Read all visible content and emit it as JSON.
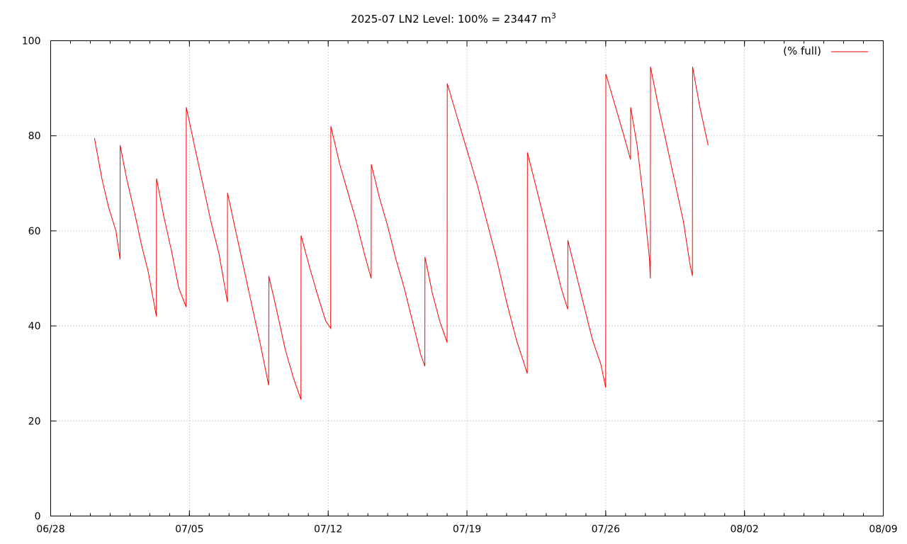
{
  "chart_data": {
    "type": "line",
    "title": "2025-07 LN2 Level: 100% = 23447 m",
    "title_superscript": "3",
    "xlabel": "",
    "ylabel": "",
    "x_ticks": [
      "06/28",
      "07/05",
      "07/12",
      "07/19",
      "07/26",
      "08/02",
      "08/09"
    ],
    "y_ticks": [
      "0",
      "20",
      "40",
      "60",
      "80",
      "100"
    ],
    "xlim": [
      "06/28",
      "08/09"
    ],
    "ylim": [
      0,
      100
    ],
    "grid": true,
    "legend_position": "top-right",
    "series": [
      {
        "name": "(% full)",
        "color": "#ff0000",
        "points": [
          [
            "06/30 05:00",
            79.5
          ],
          [
            "06/30 14:00",
            71.0
          ],
          [
            "06/30 22:00",
            65.0
          ],
          [
            "07/01 07:00",
            60.0
          ],
          [
            "07/01 12:00",
            54.0
          ],
          [
            "07/01 12:10",
            78.0
          ],
          [
            "07/01 20:00",
            71.0
          ],
          [
            "07/02 06:00",
            63.5
          ],
          [
            "07/02 14:00",
            57.0
          ],
          [
            "07/02 22:00",
            51.5
          ],
          [
            "07/03 08:00",
            42.0
          ],
          [
            "07/03 08:10",
            71.0
          ],
          [
            "07/03 17:00",
            63.0
          ],
          [
            "07/04 02:00",
            56.0
          ],
          [
            "07/04 11:00",
            48.0
          ],
          [
            "07/04 20:00",
            44.0
          ],
          [
            "07/04 20:10",
            86.0
          ],
          [
            "07/05 06:00",
            78.0
          ],
          [
            "07/05 16:00",
            70.0
          ],
          [
            "07/06 02:00",
            62.0
          ],
          [
            "07/06 12:00",
            55.0
          ],
          [
            "07/06 22:00",
            45.0
          ],
          [
            "07/06 22:10",
            68.0
          ],
          [
            "07/07 08:00",
            60.0
          ],
          [
            "07/07 18:00",
            52.0
          ],
          [
            "07/08 04:00",
            44.0
          ],
          [
            "07/08 14:00",
            36.0
          ],
          [
            "07/09 00:00",
            27.5
          ],
          [
            "07/09 00:10",
            50.5
          ],
          [
            "07/09 10:00",
            43.0
          ],
          [
            "07/09 20:00",
            35.0
          ],
          [
            "07/10 06:00",
            29.0
          ],
          [
            "07/10 15:00",
            24.5
          ],
          [
            "07/10 15:10",
            59.0
          ],
          [
            "07/11 02:00",
            52.0
          ],
          [
            "07/11 12:00",
            46.0
          ],
          [
            "07/11 21:00",
            41.0
          ],
          [
            "07/12 03:00",
            39.5
          ],
          [
            "07/12 03:10",
            82.0
          ],
          [
            "07/12 14:00",
            74.0
          ],
          [
            "07/13 00:00",
            68.0
          ],
          [
            "07/13 10:00",
            62.0
          ],
          [
            "07/13 20:00",
            55.0
          ],
          [
            "07/14 04:00",
            50.0
          ],
          [
            "07/14 04:10",
            74.0
          ],
          [
            "07/14 14:00",
            67.0
          ],
          [
            "07/15 00:00",
            61.0
          ],
          [
            "07/15 10:00",
            54.0
          ],
          [
            "07/15 20:00",
            48.0
          ],
          [
            "07/16 06:00",
            41.0
          ],
          [
            "07/16 16:00",
            34.0
          ],
          [
            "07/16 21:00",
            31.5
          ],
          [
            "07/16 21:10",
            54.5
          ],
          [
            "07/17 06:00",
            47.0
          ],
          [
            "07/17 15:00",
            41.0
          ],
          [
            "07/18 00:00",
            36.5
          ],
          [
            "07/18 00:10",
            91.0
          ],
          [
            "07/18 12:00",
            84.0
          ],
          [
            "07/19 00:00",
            77.0
          ],
          [
            "07/19 12:00",
            70.0
          ],
          [
            "07/20 00:00",
            62.0
          ],
          [
            "07/20 12:00",
            54.0
          ],
          [
            "07/21 00:00",
            45.0
          ],
          [
            "07/21 12:00",
            37.0
          ],
          [
            "07/22 01:00",
            30.0
          ],
          [
            "07/22 01:10",
            76.5
          ],
          [
            "07/22 12:00",
            69.0
          ],
          [
            "07/22 22:00",
            62.0
          ],
          [
            "07/23 08:00",
            55.0
          ],
          [
            "07/23 18:00",
            48.0
          ],
          [
            "07/24 02:00",
            43.5
          ],
          [
            "07/24 02:10",
            58.0
          ],
          [
            "07/24 12:00",
            51.0
          ],
          [
            "07/24 22:00",
            44.0
          ],
          [
            "07/25 08:00",
            37.0
          ],
          [
            "07/25 18:00",
            32.0
          ],
          [
            "07/26 00:00",
            27.0
          ],
          [
            "07/26 00:10",
            93.0
          ],
          [
            "07/26 12:00",
            86.0
          ],
          [
            "07/26 22:00",
            80.0
          ],
          [
            "07/27 06:00",
            75.0
          ],
          [
            "07/27 06:10",
            86.0
          ],
          [
            "07/27 14:00",
            78.0
          ],
          [
            "07/27 22:00",
            66.0
          ],
          [
            "07/28 05:00",
            54.0
          ],
          [
            "07/28 06:00",
            50.0
          ],
          [
            "07/28 06:10",
            94.5
          ],
          [
            "07/28 16:00",
            86.0
          ],
          [
            "07/29 02:00",
            78.0
          ],
          [
            "07/29 12:00",
            70.0
          ],
          [
            "07/29 22:00",
            62.0
          ],
          [
            "07/30 06:00",
            53.0
          ],
          [
            "07/30 09:00",
            50.5
          ],
          [
            "07/30 09:10",
            94.5
          ],
          [
            "07/30 18:00",
            86.0
          ],
          [
            "07/31 04:00",
            78.0
          ]
        ]
      }
    ]
  }
}
